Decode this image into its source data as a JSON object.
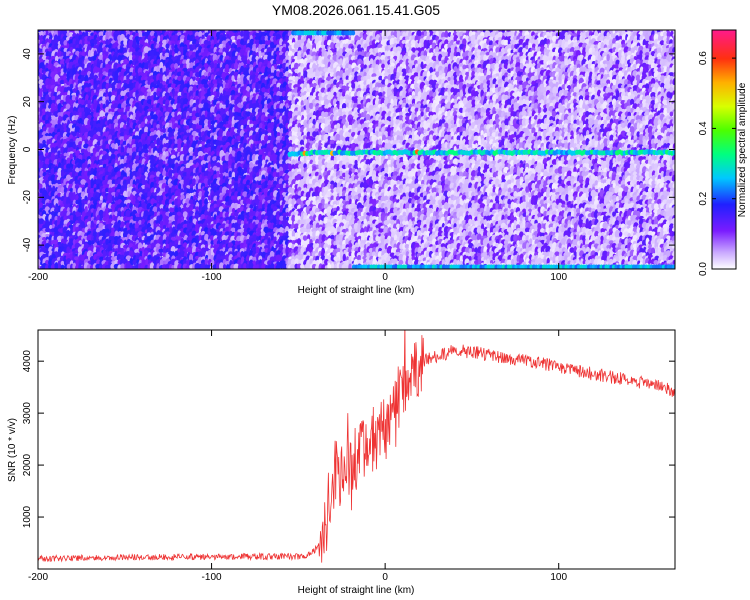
{
  "title": "YM08.2026.061.15.41.G05",
  "chart_data": [
    {
      "type": "heatmap",
      "xlabel": "Height of straight line (km)",
      "ylabel": "Frequency (Hz)",
      "xlim": [
        -200,
        167
      ],
      "ylim": [
        -50,
        50
      ],
      "xticks": [
        -200,
        -100,
        0,
        100
      ],
      "xtick_labels": [
        "-200",
        "-100",
        "0",
        "100"
      ],
      "yticks": [
        -40,
        -20,
        0,
        20,
        40
      ],
      "ytick_labels": [
        "-40",
        "-20",
        "0",
        "20",
        "40"
      ],
      "colorbar": {
        "label": "Normalized spectral amplitude",
        "range": [
          0,
          0.68
        ],
        "ticks": [
          0,
          0.2,
          0.4,
          0.6
        ],
        "tick_labels": [
          "0.0",
          "0.2",
          "0.4",
          "0.6"
        ]
      },
      "features": {
        "noise_region_x": [
          -200,
          -55
        ],
        "signal_start_km": -55,
        "carrier_line_hz": 0,
        "carrier_line_x": [
          -55,
          167
        ],
        "edge_band_top_x": [
          -53,
          -17
        ],
        "edge_band_bottom_x": [
          -18,
          167
        ]
      }
    },
    {
      "type": "line",
      "xlabel": "Height of straight line (km)",
      "ylabel": "SNR (10 * v/v)",
      "xlim": [
        -200,
        167
      ],
      "ylim": [
        0,
        4600
      ],
      "xticks": [
        -200,
        -100,
        0,
        100
      ],
      "xtick_labels": [
        "-200",
        "-100",
        "0",
        "100"
      ],
      "yticks": [
        1000,
        2000,
        3000,
        4000
      ],
      "ytick_labels": [
        "1000",
        "2000",
        "3000",
        "4000"
      ],
      "color": "#ee3333",
      "series": [
        {
          "name": "SNR",
          "x": [
            -200,
            -160,
            -120,
            -80,
            -45,
            -36,
            -30,
            -25,
            -20,
            -15,
            -10,
            -5,
            0,
            5,
            10,
            15,
            20,
            25,
            30,
            40,
            50,
            60,
            80,
            100,
            120,
            140,
            160,
            167
          ],
          "y": [
            200,
            220,
            230,
            240,
            240,
            500,
            1800,
            1800,
            2100,
            2200,
            2400,
            2500,
            2700,
            2900,
            3600,
            3700,
            3950,
            4050,
            4100,
            4200,
            4180,
            4120,
            4020,
            3900,
            3750,
            3650,
            3500,
            3400
          ]
        }
      ]
    }
  ]
}
